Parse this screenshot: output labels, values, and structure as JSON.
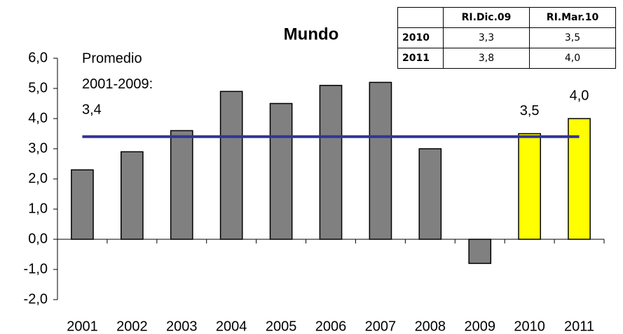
{
  "chart_data": {
    "type": "bar",
    "title": "Mundo",
    "categories": [
      "2001",
      "2002",
      "2003",
      "2004",
      "2005",
      "2006",
      "2007",
      "2008",
      "2009",
      "2010",
      "2011"
    ],
    "values": [
      2.3,
      2.9,
      3.6,
      4.9,
      4.5,
      5.1,
      5.2,
      3.0,
      -0.8,
      3.5,
      4.0
    ],
    "value_labels": [
      null,
      null,
      null,
      null,
      null,
      null,
      null,
      null,
      null,
      "3,5",
      "4,0"
    ],
    "colors": [
      "#808080",
      "#808080",
      "#808080",
      "#808080",
      "#808080",
      "#808080",
      "#808080",
      "#808080",
      "#808080",
      "#ffff00",
      "#ffff00"
    ],
    "ylim": [
      -2,
      6
    ],
    "yticks": [
      {
        "value": -2,
        "label": "-2,0"
      },
      {
        "value": -1,
        "label": "-1,0"
      },
      {
        "value": 0,
        "label": "0,0"
      },
      {
        "value": 1,
        "label": "1,0"
      },
      {
        "value": 2,
        "label": "2,0"
      },
      {
        "value": 3,
        "label": "3,0"
      },
      {
        "value": 4,
        "label": "4,0"
      },
      {
        "value": 5,
        "label": "5,0"
      },
      {
        "value": 6,
        "label": "6,0"
      }
    ],
    "reference_line": {
      "value": 3.4,
      "color": "#333399",
      "label": [
        "Promedio",
        "2001-2009:",
        "3,4"
      ]
    },
    "table": {
      "columns": [
        "RI.Dic.09",
        "RI.Mar.10"
      ],
      "rows": [
        {
          "label": "2010",
          "cells": [
            "3,3",
            "3,5"
          ]
        },
        {
          "label": "2011",
          "cells": [
            "3,8",
            "4,0"
          ]
        }
      ]
    }
  }
}
